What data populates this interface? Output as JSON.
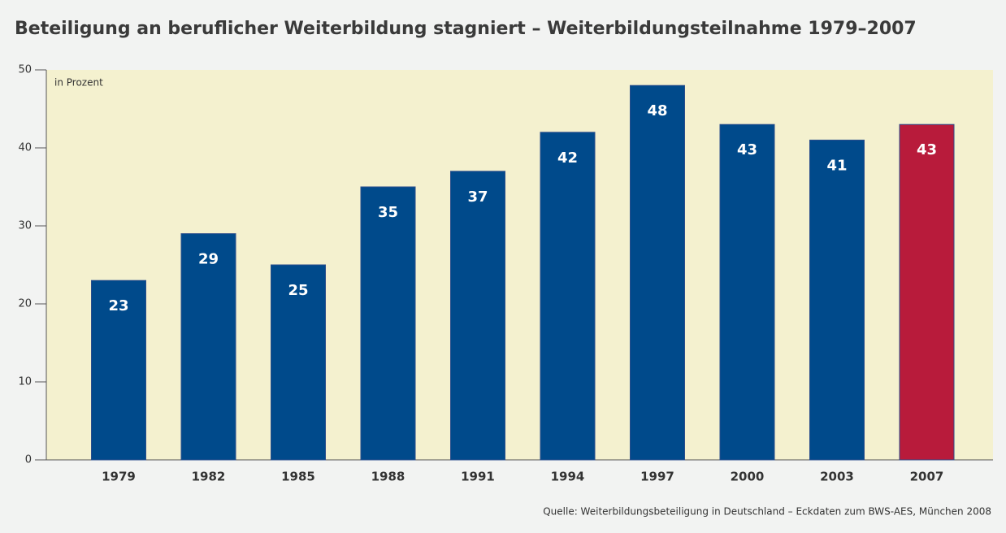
{
  "chart_data": {
    "type": "bar",
    "title": "Beteiligung an beruflicher Weiterbildung stagniert – Weiterbildungsteilnahme 1979–2007",
    "y_label": "in Prozent",
    "source": "Quelle: Weiterbildungsbeteiligung in Deutschland – Eckdaten zum BWS-AES, München 2008",
    "categories": [
      "1979",
      "1982",
      "1985",
      "1988",
      "1991",
      "1994",
      "1997",
      "2000",
      "2003",
      "2007"
    ],
    "values": [
      23,
      29,
      25,
      35,
      37,
      42,
      48,
      43,
      41,
      43
    ],
    "colors": [
      "#004a8b",
      "#004a8b",
      "#004a8b",
      "#004a8b",
      "#004a8b",
      "#004a8b",
      "#004a8b",
      "#004a8b",
      "#004a8b",
      "#b81b3b"
    ],
    "ylim": [
      0,
      50
    ],
    "yticks": [
      0,
      10,
      20,
      30,
      40,
      50
    ]
  }
}
